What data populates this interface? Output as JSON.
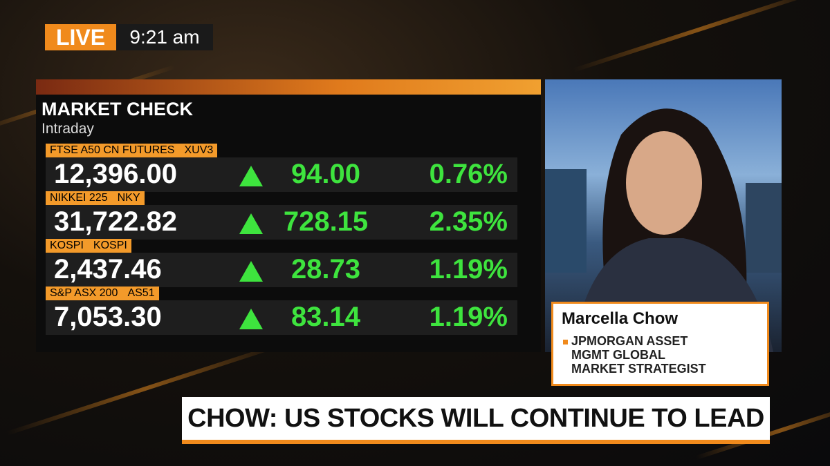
{
  "badge": {
    "live": "LIVE",
    "time": "9:21 am"
  },
  "market": {
    "title": "MARKET CHECK",
    "subtitle": "Intraday",
    "rows": [
      {
        "name": "FTSE A50 CN FUTURES",
        "ticker": "XUV3",
        "price": "12,396.00",
        "change": "94.00",
        "percent": "0.76%"
      },
      {
        "name": "NIKKEI 225",
        "ticker": "NKY",
        "price": "31,722.82",
        "change": "728.15",
        "percent": "2.35%"
      },
      {
        "name": "KOSPI",
        "ticker": "KOSPI",
        "price": "2,437.46",
        "change": "28.73",
        "percent": "1.19%"
      },
      {
        "name": "S&P ASX 200",
        "ticker": "AS51",
        "price": "7,053.30",
        "change": "83.14",
        "percent": "1.19%"
      }
    ]
  },
  "guest": {
    "name": "Marcella Chow",
    "title_lines": [
      "JPMORGAN ASSET",
      "MGMT GLOBAL",
      "MARKET STRATEGIST"
    ]
  },
  "headline": "CHOW: US STOCKS WILL CONTINUE TO LEAD"
}
